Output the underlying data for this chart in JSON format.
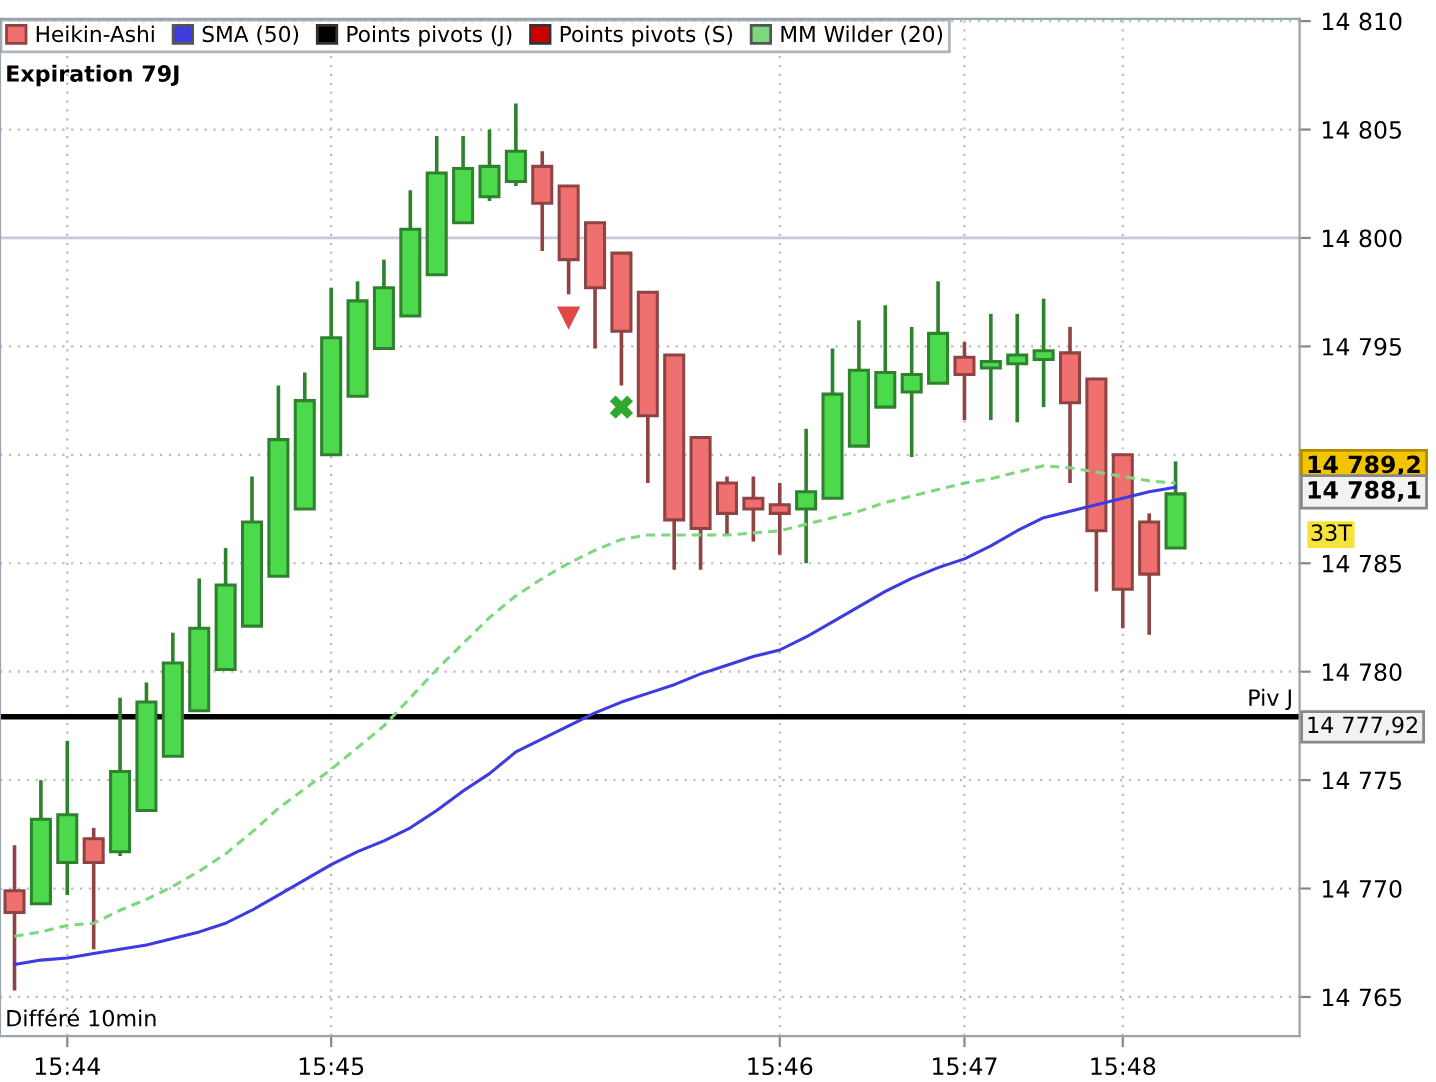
{
  "chart_data": {
    "type": "candlestick",
    "categories": [
      null,
      null,
      "15:44",
      null,
      null,
      null,
      null,
      null,
      null,
      null,
      null,
      null,
      "15:45",
      null,
      null,
      null,
      null,
      null,
      null,
      null,
      null,
      null,
      null,
      null,
      null,
      null,
      null,
      null,
      null,
      "15:46",
      null,
      null,
      null,
      null,
      null,
      null,
      "15:47",
      null,
      null,
      null,
      null,
      null,
      "15:48",
      null,
      null
    ],
    "series": [
      {
        "name": "Heikin-Ashi",
        "ohlc": [
          [
            14769.9,
            14772.0,
            14765.3,
            14768.9
          ],
          [
            14769.3,
            14775.0,
            14769.3,
            14773.2
          ],
          [
            14771.2,
            14776.8,
            14769.7,
            14773.4
          ],
          [
            14772.3,
            14772.8,
            14767.2,
            14771.2
          ],
          [
            14771.7,
            14778.8,
            14771.5,
            14775.4
          ],
          [
            14773.6,
            14779.5,
            14773.6,
            14778.6
          ],
          [
            14776.1,
            14781.8,
            14776.1,
            14780.4
          ],
          [
            14778.2,
            14784.3,
            14778.2,
            14782.0
          ],
          [
            14780.1,
            14785.7,
            14780.1,
            14784.0
          ],
          [
            14782.1,
            14789.0,
            14782.1,
            14786.9
          ],
          [
            14784.4,
            14793.2,
            14784.4,
            14790.7
          ],
          [
            14787.5,
            14793.8,
            14787.5,
            14792.5
          ],
          [
            14790.0,
            14797.7,
            14790.0,
            14795.4
          ],
          [
            14792.7,
            14798.0,
            14792.7,
            14797.1
          ],
          [
            14794.9,
            14799.0,
            14794.9,
            14797.7
          ],
          [
            14796.4,
            14802.2,
            14796.4,
            14800.4
          ],
          [
            14798.3,
            14804.7,
            14798.3,
            14803.0
          ],
          [
            14800.7,
            14804.7,
            14800.7,
            14803.2
          ],
          [
            14801.9,
            14805.0,
            14801.7,
            14803.3
          ],
          [
            14802.6,
            14806.2,
            14802.4,
            14804.0
          ],
          [
            14803.3,
            14804.0,
            14799.4,
            14801.6
          ],
          [
            14802.4,
            14802.4,
            14797.4,
            14799.0
          ],
          [
            14800.7,
            14800.7,
            14794.9,
            14797.7
          ],
          [
            14799.3,
            14799.3,
            14793.2,
            14795.7
          ],
          [
            14797.5,
            14797.5,
            14788.7,
            14791.8
          ],
          [
            14794.6,
            14794.6,
            14784.7,
            14787.0
          ],
          [
            14790.8,
            14790.8,
            14784.7,
            14786.6
          ],
          [
            14788.7,
            14789.0,
            14786.3,
            14787.3
          ],
          [
            14788.0,
            14789.0,
            14786.0,
            14787.5
          ],
          [
            14787.7,
            14788.7,
            14785.4,
            14787.3
          ],
          [
            14787.5,
            14791.2,
            14785.0,
            14788.3
          ],
          [
            14788.0,
            14794.9,
            14788.0,
            14792.8
          ],
          [
            14790.4,
            14796.2,
            14790.4,
            14793.9
          ],
          [
            14792.2,
            14796.9,
            14792.2,
            14793.8
          ],
          [
            14792.9,
            14795.9,
            14789.9,
            14793.7
          ],
          [
            14793.3,
            14798.0,
            14793.3,
            14795.6
          ],
          [
            14794.5,
            14795.2,
            14791.6,
            14793.7
          ],
          [
            14794.0,
            14796.5,
            14791.6,
            14794.3
          ],
          [
            14794.2,
            14796.5,
            14791.5,
            14794.6
          ],
          [
            14794.4,
            14797.2,
            14792.2,
            14794.8
          ],
          [
            14794.7,
            14795.9,
            14788.7,
            14792.4
          ],
          [
            14793.5,
            14793.5,
            14783.7,
            14786.5
          ],
          [
            14790.0,
            14790.0,
            14782.0,
            14783.8
          ],
          [
            14786.9,
            14787.3,
            14781.7,
            14784.5
          ],
          [
            14785.7,
            14789.7,
            14785.7,
            14788.2
          ]
        ],
        "colors": [
          "#f07070",
          "#4cd94c",
          "#4cd94c",
          "#f07070",
          "#4cd94c",
          "#4cd94c",
          "#4cd94c",
          "#4cd94c",
          "#4cd94c",
          "#4cd94c",
          "#4cd94c",
          "#4cd94c",
          "#4cd94c",
          "#4cd94c",
          "#4cd94c",
          "#4cd94c",
          "#4cd94c",
          "#4cd94c",
          "#4cd94c",
          "#4cd94c",
          "#f07070",
          "#f07070",
          "#f07070",
          "#f07070",
          "#f07070",
          "#f07070",
          "#f07070",
          "#f07070",
          "#f07070",
          "#f07070",
          "#4cd94c",
          "#4cd94c",
          "#4cd94c",
          "#4cd94c",
          "#4cd94c",
          "#4cd94c",
          "#f07070",
          "#4cd94c",
          "#4cd94c",
          "#4cd94c",
          "#f07070",
          "#f07070",
          "#f07070",
          "#f07070",
          "#4cd94c"
        ]
      },
      {
        "name": "SMA (50)",
        "type": "line",
        "color": "#3c3ce0",
        "line_style": "solid",
        "values": [
          14766.5,
          14766.7,
          14766.8,
          14767.0,
          14767.2,
          14767.4,
          14767.7,
          14768.0,
          14768.4,
          14769.0,
          14769.7,
          14770.4,
          14771.1,
          14771.7,
          14772.2,
          14772.8,
          14773.6,
          14774.5,
          14775.3,
          14776.3,
          14776.9,
          14777.5,
          14778.1,
          14778.6,
          14779.0,
          14779.4,
          14779.9,
          14780.3,
          14780.7,
          14781.0,
          14781.6,
          14782.3,
          14783.0,
          14783.7,
          14784.3,
          14784.8,
          14785.2,
          14785.8,
          14786.5,
          14787.1,
          14787.4,
          14787.7,
          14788.0,
          14788.3,
          14788.5
        ]
      },
      {
        "name": "MM Wilder (20)",
        "type": "line",
        "color": "#7dd87d",
        "line_style": "dashed",
        "values": [
          14767.8,
          14768.0,
          14768.3,
          14768.4,
          14769.0,
          14769.5,
          14770.1,
          14770.8,
          14771.6,
          14772.6,
          14773.7,
          14774.6,
          14775.5,
          14776.5,
          14777.5,
          14778.8,
          14780.1,
          14781.3,
          14782.5,
          14783.5,
          14784.3,
          14785.0,
          14785.6,
          14786.1,
          14786.3,
          14786.3,
          14786.3,
          14786.3,
          14786.4,
          14786.5,
          14786.8,
          14787.1,
          14787.4,
          14787.8,
          14788.1,
          14788.4,
          14788.7,
          14788.9,
          14789.2,
          14789.5,
          14789.4,
          14789.2,
          14789.0,
          14788.8,
          14788.7
        ]
      },
      {
        "type": "scatter",
        "color": "#e04848",
        "marker": "triangle",
        "values": [
          null,
          null,
          null,
          null,
          null,
          null,
          null,
          null,
          null,
          null,
          null,
          null,
          null,
          null,
          null,
          null,
          null,
          null,
          null,
          null,
          null,
          14796.3,
          null,
          null,
          null,
          null,
          null,
          null,
          null,
          null,
          null,
          null,
          null,
          null,
          null,
          null,
          null,
          null,
          null,
          null,
          null,
          null,
          null,
          null,
          null
        ]
      },
      {
        "type": "scatter",
        "color": "#2ea82e",
        "marker": "cross",
        "values": [
          null,
          null,
          null,
          null,
          null,
          null,
          null,
          null,
          null,
          null,
          null,
          null,
          null,
          null,
          null,
          null,
          null,
          null,
          null,
          null,
          null,
          null,
          null,
          14792.2,
          null,
          null,
          null,
          null,
          null,
          null,
          null,
          null,
          null,
          null,
          null,
          null,
          null,
          null,
          null,
          null,
          null,
          null,
          null,
          null,
          null
        ]
      }
    ],
    "ylim": [
      14763.2,
      14810.1
    ],
    "yticks": [
      {
        "value": 14765,
        "label": "14 765"
      },
      {
        "value": 14770,
        "label": "14 770"
      },
      {
        "value": 14775,
        "label": "14 775"
      },
      {
        "value": 14780,
        "label": "14 780"
      },
      {
        "value": 14785,
        "label": "14 785"
      },
      {
        "value": 14790,
        "label": null
      },
      {
        "value": 14795,
        "label": "14 795"
      },
      {
        "value": 14800,
        "label": "14 800"
      },
      {
        "value": 14805,
        "label": "14 805"
      },
      {
        "value": 14810,
        "label": "14 810"
      }
    ],
    "grid": true,
    "legend": "top left",
    "ref_lines": [
      {
        "axis": "y",
        "value": 14777.92,
        "label": "Piv J",
        "color": "#000000"
      },
      {
        "axis": "y",
        "value": 14800,
        "label": null,
        "color": "#c8c8d8"
      }
    ],
    "annotations": [
      "Expiration 79J",
      "Points pivots (J)",
      "Points pivots (S)",
      "Différé 10min",
      "33T",
      "14 789,2",
      "14 788,1",
      "14 777,92"
    ]
  }
}
